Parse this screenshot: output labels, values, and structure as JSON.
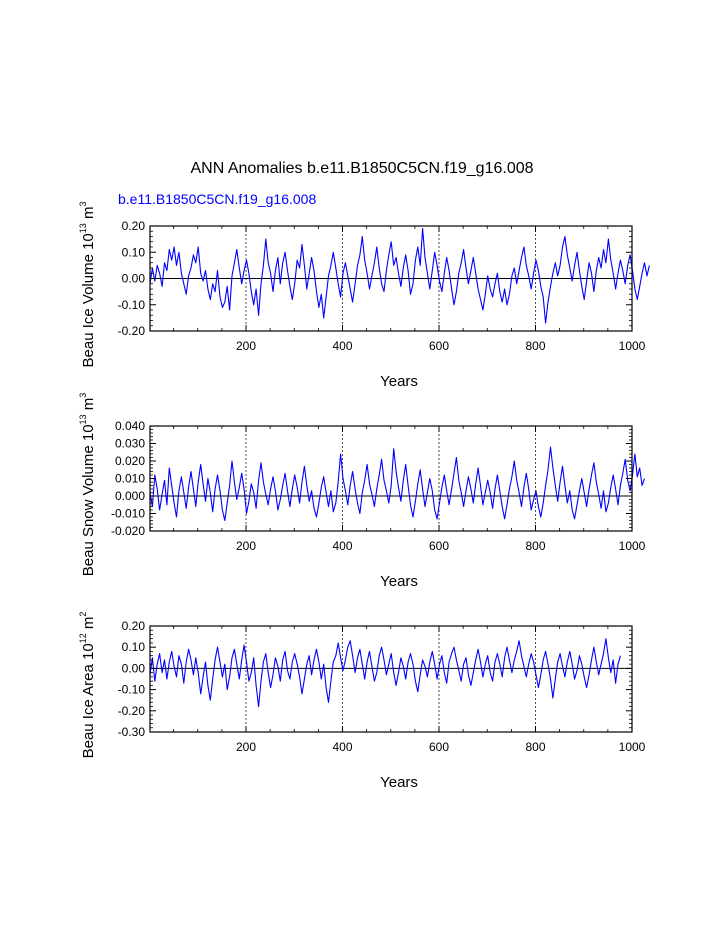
{
  "figure": {
    "title": "ANN Anomalies b.e11.B1850C5CN.f19_g16.008",
    "run_label": "b.e11.B1850C5CN.f19_g16.008",
    "run_color": "#0000ff",
    "line_color": "#0000ff"
  },
  "chart_data": [
    {
      "type": "line",
      "name": "beau-ice-volume",
      "ylabel": "Beau Ice Volume",
      "ylabel_exp_base": "10",
      "ylabel_exp": "13",
      "ylabel_unit": "m",
      "ylabel_unit_exp": "3",
      "xlabel": "Years",
      "xlim": [
        1,
        1000
      ],
      "ylim": [
        -0.2,
        0.2
      ],
      "x_ticks": [
        "200",
        "400",
        "600",
        "800",
        "1000"
      ],
      "y_ticks": [
        "0.20",
        "0.10",
        "0.00",
        "-0.10",
        "-0.20"
      ],
      "y_tick_values": [
        0.2,
        0.1,
        0.0,
        -0.1,
        -0.2
      ],
      "gridlines_x": [
        200,
        400,
        600,
        800
      ],
      "series": [
        {
          "name": "b.e11.B1850C5CN.f19_g16.008",
          "x_start": 1,
          "x_step": 5,
          "values": [
            -0.02,
            0.04,
            -0.01,
            0.05,
            0.02,
            -0.03,
            0.06,
            0.03,
            0.11,
            0.07,
            0.12,
            0.05,
            0.1,
            0.02,
            -0.02,
            -0.06,
            0.01,
            0.04,
            0.09,
            0.06,
            0.12,
            0.02,
            -0.01,
            0.03,
            -0.04,
            -0.08,
            -0.02,
            -0.05,
            0.03,
            -0.07,
            -0.11,
            -0.09,
            -0.03,
            -0.12,
            0.01,
            0.06,
            0.11,
            0.04,
            -0.02,
            0.03,
            0.07,
            0.02,
            -0.05,
            -0.1,
            -0.04,
            -0.14,
            -0.02,
            0.05,
            0.15,
            0.06,
            0.02,
            -0.05,
            0.03,
            0.08,
            -0.02,
            0.06,
            0.1,
            0.03,
            -0.03,
            -0.08,
            -0.02,
            0.07,
            0.04,
            0.13,
            0.05,
            -0.04,
            0.02,
            0.08,
            0.03,
            -0.05,
            -0.11,
            -0.06,
            -0.15,
            -0.07,
            0.01,
            0.05,
            0.1,
            0.04,
            -0.02,
            -0.07,
            0.02,
            0.06,
            0.01,
            -0.04,
            -0.09,
            -0.02,
            0.05,
            0.09,
            0.16,
            0.07,
            0.02,
            -0.04,
            0.01,
            0.06,
            0.12,
            0.04,
            -0.02,
            -0.05,
            0.03,
            0.09,
            0.14,
            0.05,
            0.08,
            0.02,
            -0.03,
            0.04,
            0.09,
            0.03,
            -0.06,
            -0.02,
            0.07,
            0.12,
            0.05,
            0.19,
            0.08,
            0.02,
            -0.04,
            0.03,
            0.1,
            0.05,
            -0.01,
            -0.05,
            0.02,
            0.08,
            0.03,
            -0.04,
            -0.1,
            -0.05,
            0.02,
            0.06,
            0.11,
            0.04,
            -0.02,
            0.03,
            0.08,
            0.02,
            -0.04,
            -0.08,
            -0.12,
            -0.06,
            0.01,
            -0.04,
            -0.07,
            -0.02,
            0.02,
            -0.05,
            -0.09,
            -0.04,
            -0.1,
            -0.06,
            0.01,
            0.04,
            -0.02,
            0.03,
            0.08,
            0.12,
            0.05,
            0.01,
            -0.04,
            0.02,
            0.07,
            0.03,
            -0.03,
            -0.07,
            -0.17,
            -0.09,
            -0.03,
            0.02,
            0.06,
            0.01,
            0.05,
            0.12,
            0.16,
            0.09,
            0.04,
            -0.01,
            0.05,
            0.1,
            0.03,
            -0.03,
            -0.08,
            -0.01,
            0.06,
            0.02,
            -0.05,
            0.03,
            0.08,
            0.04,
            0.11,
            0.06,
            0.15,
            0.07,
            0.02,
            -0.04,
            0.02,
            0.07,
            0.03,
            -0.02,
            0.05,
            0.09,
            0.03,
            -0.04,
            -0.08,
            -0.03,
            0.02,
            0.06,
            0.01,
            0.05
          ]
        }
      ]
    },
    {
      "type": "line",
      "name": "beau-snow-volume",
      "ylabel": "Beau Snow Volume",
      "ylabel_exp_base": "10",
      "ylabel_exp": "13",
      "ylabel_unit": "m",
      "ylabel_unit_exp": "3",
      "xlabel": "Years",
      "xlim": [
        1,
        1000
      ],
      "ylim": [
        -0.02,
        0.04
      ],
      "x_ticks": [
        "200",
        "400",
        "600",
        "800",
        "1000"
      ],
      "y_ticks": [
        "0.040",
        "0.030",
        "0.020",
        "0.010",
        "0.000",
        "-0.010",
        "-0.020"
      ],
      "y_tick_values": [
        0.04,
        0.03,
        0.02,
        0.01,
        0.0,
        -0.01,
        -0.02
      ],
      "gridlines_x": [
        200,
        400,
        600,
        800
      ],
      "series": [
        {
          "name": "b.e11.B1850C5CN.f19_g16.008",
          "x_start": 1,
          "x_step": 5,
          "values": [
            0.002,
            -0.006,
            0.012,
            0.004,
            -0.008,
            0.001,
            0.009,
            -0.005,
            0.016,
            0.006,
            -0.004,
            -0.012,
            0.003,
            0.011,
            0.002,
            -0.007,
            0.005,
            0.014,
            0.004,
            -0.006,
            0.008,
            0.018,
            0.007,
            -0.003,
            0.01,
            0.002,
            -0.009,
            0.004,
            0.012,
            0.003,
            -0.008,
            -0.014,
            -0.004,
            0.006,
            0.02,
            0.008,
            -0.002,
            0.005,
            0.013,
            0.004,
            -0.01,
            -0.003,
            0.007,
            0.002,
            -0.007,
            0.009,
            0.019,
            0.008,
            0.001,
            -0.005,
            0.004,
            0.011,
            0.003,
            -0.008,
            -0.002,
            0.006,
            0.013,
            0.003,
            -0.006,
            0.004,
            0.012,
            0.005,
            -0.004,
            0.008,
            0.017,
            0.006,
            -0.003,
            0.003,
            -0.007,
            -0.012,
            -0.004,
            0.005,
            0.011,
            0.002,
            -0.006,
            0.003,
            -0.009,
            -0.004,
            0.008,
            0.024,
            0.01,
            0.003,
            -0.005,
            0.006,
            0.014,
            0.004,
            -0.004,
            -0.01,
            0.002,
            0.009,
            0.018,
            0.007,
            0.001,
            -0.006,
            0.004,
            0.012,
            0.021,
            0.009,
            0.003,
            -0.004,
            0.006,
            0.027,
            0.014,
            0.005,
            -0.003,
            0.009,
            0.018,
            0.006,
            -0.005,
            -0.012,
            -0.003,
            0.007,
            0.015,
            0.004,
            -0.006,
            0.002,
            0.01,
            0.003,
            -0.008,
            -0.013,
            -0.004,
            0.005,
            0.012,
            0.003,
            -0.005,
            0.004,
            0.013,
            0.022,
            0.009,
            0.002,
            -0.006,
            0.003,
            0.011,
            0.004,
            -0.004,
            0.007,
            0.016,
            0.006,
            -0.005,
            0.002,
            0.009,
            0.002,
            -0.007,
            0.004,
            0.012,
            0.003,
            -0.006,
            -0.013,
            -0.005,
            0.004,
            0.011,
            0.02,
            0.009,
            0.002,
            -0.006,
            0.005,
            0.013,
            0.004,
            -0.008,
            -0.002,
            0.003,
            -0.006,
            -0.012,
            -0.004,
            0.006,
            0.015,
            0.028,
            0.016,
            0.006,
            -0.003,
            0.008,
            0.017,
            0.006,
            -0.004,
            0.003,
            -0.008,
            -0.013,
            -0.005,
            0.003,
            0.01,
            0.002,
            -0.006,
            0.004,
            0.012,
            0.019,
            0.008,
            0.001,
            -0.007,
            0.003,
            -0.009,
            -0.004,
            0.005,
            0.012,
            0.004,
            -0.005,
            0.006,
            0.013,
            0.021,
            0.009,
            0.003,
            0.012,
            0.024,
            0.011,
            0.016,
            0.006,
            0.01
          ]
        }
      ]
    },
    {
      "type": "line",
      "name": "beau-ice-area",
      "ylabel": "Beau Ice Area",
      "ylabel_exp_base": "10",
      "ylabel_exp": "12",
      "ylabel_unit": "m",
      "ylabel_unit_exp": "2",
      "xlabel": "Years",
      "xlim": [
        1,
        1000
      ],
      "ylim": [
        -0.3,
        0.2
      ],
      "x_ticks": [
        "200",
        "400",
        "600",
        "800",
        "1000"
      ],
      "y_ticks": [
        "0.20",
        "0.10",
        "0.00",
        "-0.10",
        "-0.20",
        "-0.30"
      ],
      "y_tick_values": [
        0.2,
        0.1,
        0.0,
        -0.1,
        -0.2,
        -0.3
      ],
      "gridlines_x": [
        200,
        400,
        600,
        800
      ],
      "series": [
        {
          "name": "b.e11.B1850C5CN.f19_g16.008",
          "x_start": 1,
          "x_step": 5,
          "values": [
            -0.03,
            0.05,
            -0.06,
            0.02,
            0.07,
            -0.02,
            0.04,
            -0.05,
            0.03,
            0.08,
            0.01,
            -0.04,
            0.06,
            0.02,
            -0.07,
            0.03,
            0.09,
            0.04,
            -0.03,
            0.05,
            -0.02,
            -0.12,
            -0.04,
            0.03,
            -0.08,
            -0.15,
            -0.05,
            0.04,
            0.1,
            0.03,
            -0.04,
            0.02,
            -0.1,
            -0.04,
            0.05,
            0.09,
            0.02,
            -0.05,
            0.04,
            0.11,
            0.03,
            -0.06,
            -0.02,
            0.05,
            -0.08,
            -0.18,
            -0.06,
            0.03,
            0.07,
            -0.02,
            -0.09,
            -0.03,
            0.05,
            0.01,
            -0.06,
            0.04,
            0.08,
            -0.01,
            -0.05,
            0.03,
            0.07,
            0.02,
            -0.04,
            -0.12,
            -0.05,
            0.02,
            0.06,
            -0.03,
            0.04,
            0.09,
            0.03,
            -0.05,
            0.02,
            -0.09,
            -0.16,
            -0.06,
            0.03,
            0.06,
            0.12,
            0.05,
            -0.01,
            0.04,
            0.1,
            0.13,
            0.06,
            -0.02,
            0.05,
            0.09,
            0.02,
            -0.05,
            0.03,
            0.08,
            0.01,
            -0.06,
            -0.02,
            0.06,
            0.1,
            0.04,
            -0.03,
            0.02,
            0.07,
            -0.02,
            -0.08,
            -0.02,
            0.05,
            0.01,
            -0.05,
            0.03,
            0.07,
            0.02,
            -0.06,
            -0.11,
            -0.03,
            0.04,
            0.01,
            -0.04,
            0.03,
            0.08,
            0.02,
            -0.05,
            0.02,
            0.06,
            -0.02,
            -0.07,
            0.03,
            0.07,
            0.1,
            0.04,
            -0.01,
            -0.06,
            0.02,
            0.05,
            -0.03,
            -0.08,
            -0.02,
            0.04,
            0.09,
            0.03,
            -0.04,
            0.02,
            0.06,
            -0.02,
            -0.06,
            0.03,
            0.07,
            0.02,
            -0.04,
            0.05,
            0.1,
            0.04,
            -0.02,
            0.04,
            0.08,
            0.13,
            0.06,
            0.01,
            -0.04,
            0.02,
            0.07,
            0.03,
            -0.03,
            -0.09,
            -0.03,
            0.04,
            0.08,
            0.02,
            -0.05,
            -0.14,
            -0.05,
            0.03,
            0.07,
            0.01,
            -0.04,
            0.03,
            0.08,
            0.02,
            -0.05,
            -0.01,
            0.06,
            0.02,
            -0.04,
            -0.09,
            -0.03,
            0.04,
            0.1,
            0.03,
            -0.03,
            0.02,
            0.07,
            0.14,
            0.05,
            -0.02,
            0.04,
            -0.07,
            0.02,
            0.06
          ]
        }
      ]
    }
  ]
}
